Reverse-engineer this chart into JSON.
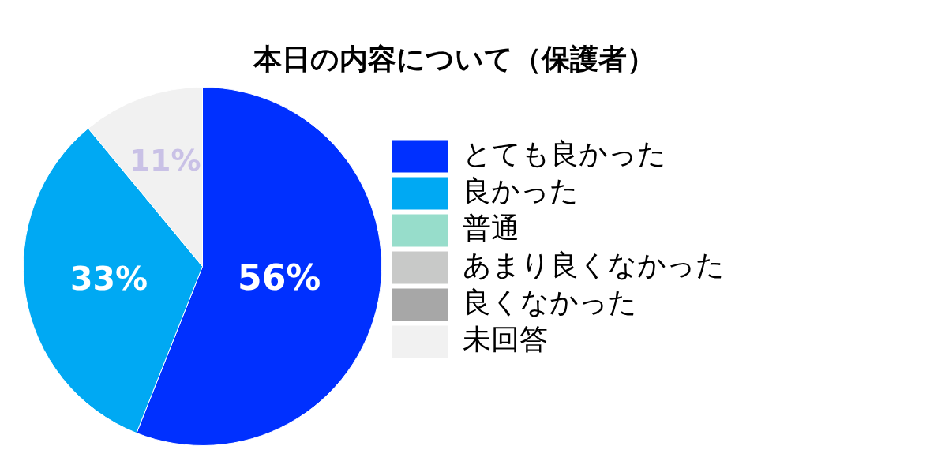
{
  "chart_data": {
    "type": "pie",
    "title": "本日の内容について（保護者）",
    "categories": [
      "とても良かった",
      "良かった",
      "普通",
      "あまり良くなかった",
      "良くなかった",
      "未回答"
    ],
    "values": [
      56,
      33,
      0,
      0,
      0,
      11
    ],
    "colors": [
      "#0030ff",
      "#00a9f3",
      "#97ddcb",
      "#c8c9c8",
      "#a7a7a7",
      "#f1f1f1"
    ],
    "value_labels": [
      "56%",
      "33%",
      null,
      null,
      null,
      "11%"
    ],
    "legend": "right"
  }
}
